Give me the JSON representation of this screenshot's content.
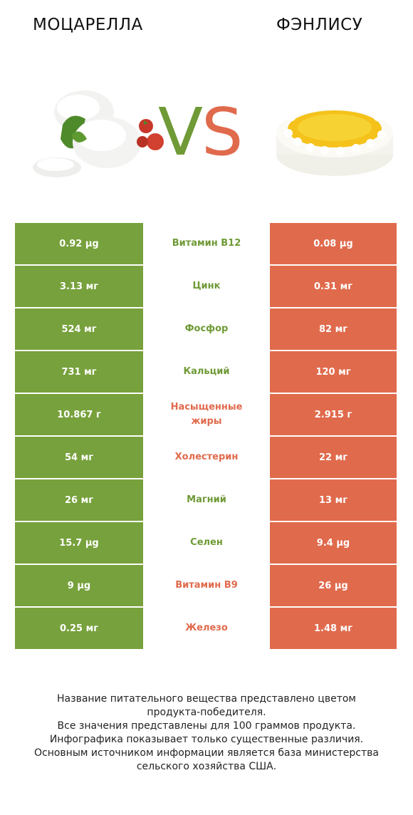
{
  "products": {
    "left": {
      "name": "МОЦАРЕЛЛА",
      "color": "#77a13c"
    },
    "right": {
      "name": "ФЭНЛИСУ",
      "color": "#e06a4c"
    }
  },
  "vs": {
    "v": "V",
    "s": "S"
  },
  "rows": [
    {
      "nutrient": "Витамин B12",
      "left": "0.92 µg",
      "right": "0.08 µg",
      "winner": "left"
    },
    {
      "nutrient": "Цинк",
      "left": "3.13 мг",
      "right": "0.31 мг",
      "winner": "left"
    },
    {
      "nutrient": "Фосфор",
      "left": "524 мг",
      "right": "82 мг",
      "winner": "left"
    },
    {
      "nutrient": "Кальций",
      "left": "731 мг",
      "right": "120 мг",
      "winner": "left"
    },
    {
      "nutrient": "Насыщенные жиры",
      "left": "10.867 г",
      "right": "2.915 г",
      "winner": "right"
    },
    {
      "nutrient": "Холестерин",
      "left": "54 мг",
      "right": "22 мг",
      "winner": "right"
    },
    {
      "nutrient": "Магний",
      "left": "26 мг",
      "right": "13 мг",
      "winner": "left"
    },
    {
      "nutrient": "Селен",
      "left": "15.7 µg",
      "right": "9.4 µg",
      "winner": "left"
    },
    {
      "nutrient": "Витамин B9",
      "left": "9 µg",
      "right": "26 µg",
      "winner": "right"
    },
    {
      "nutrient": "Железо",
      "left": "0.25 мг",
      "right": "1.48 мг",
      "winner": "right"
    }
  ],
  "footer": {
    "line1": "Название питательного вещества представлено цветом",
    "line2": "продукта-победителя.",
    "line3": "Все значения представлены для 100 граммов продукта.",
    "line4": "Инфографика показывает только существенные различия.",
    "line5": "Основным источником информации является база министерства",
    "line6": "сельского хозяйства США."
  }
}
